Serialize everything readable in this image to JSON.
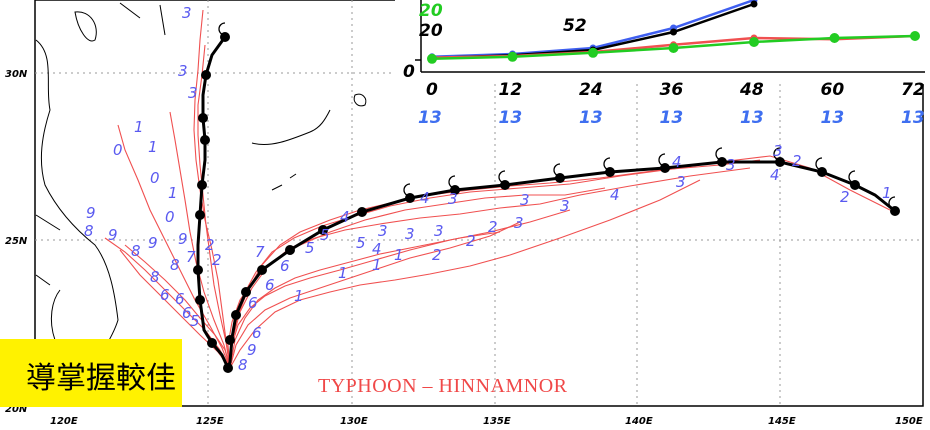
{
  "map": {
    "title": "TYPHOON  –  HINNAMNOR",
    "lat_labels": [
      "30N",
      "25N",
      "20N"
    ],
    "lon_labels": [
      "120E",
      "125E",
      "130E",
      "135E",
      "140E",
      "145E",
      "150E"
    ],
    "colors": {
      "best_track": "#000000",
      "ensemble_tracks": "#f05050",
      "track_labels": "#5a5af0",
      "coastline": "#000000",
      "title": "#f04848"
    }
  },
  "inset_chart": {
    "x_ticks": [
      "0",
      "12",
      "24",
      "36",
      "48",
      "60",
      "72"
    ],
    "member_counts": [
      "13",
      "13",
      "13",
      "13",
      "13",
      "13",
      "13"
    ],
    "y_tick": "0",
    "legend_values": [
      {
        "text": "20",
        "color": "#22cc22"
      },
      {
        "text": "52",
        "color": "#000000"
      },
      {
        "text": "20",
        "color": "#000000"
      }
    ],
    "series_colors": [
      "#3f5ff0",
      "#000000",
      "#f05050",
      "#22cc22"
    ]
  },
  "chart_data": {
    "type": "line",
    "x": [
      0,
      12,
      24,
      36,
      48,
      60,
      72
    ],
    "xlabel": "",
    "ylabel": "",
    "series": [
      {
        "values": [
          8,
          15,
          30,
          80,
          150,
          null,
          null
        ]
      },
      {
        "values": [
          5,
          12,
          25,
          70,
          140,
          null,
          null
        ]
      },
      {
        "values": [
          6,
          10,
          20,
          38,
          55,
          52,
          60
        ]
      },
      {
        "values": [
          3,
          8,
          18,
          30,
          45,
          55,
          60
        ]
      }
    ]
  },
  "banner": {
    "text": "導掌握較佳"
  }
}
